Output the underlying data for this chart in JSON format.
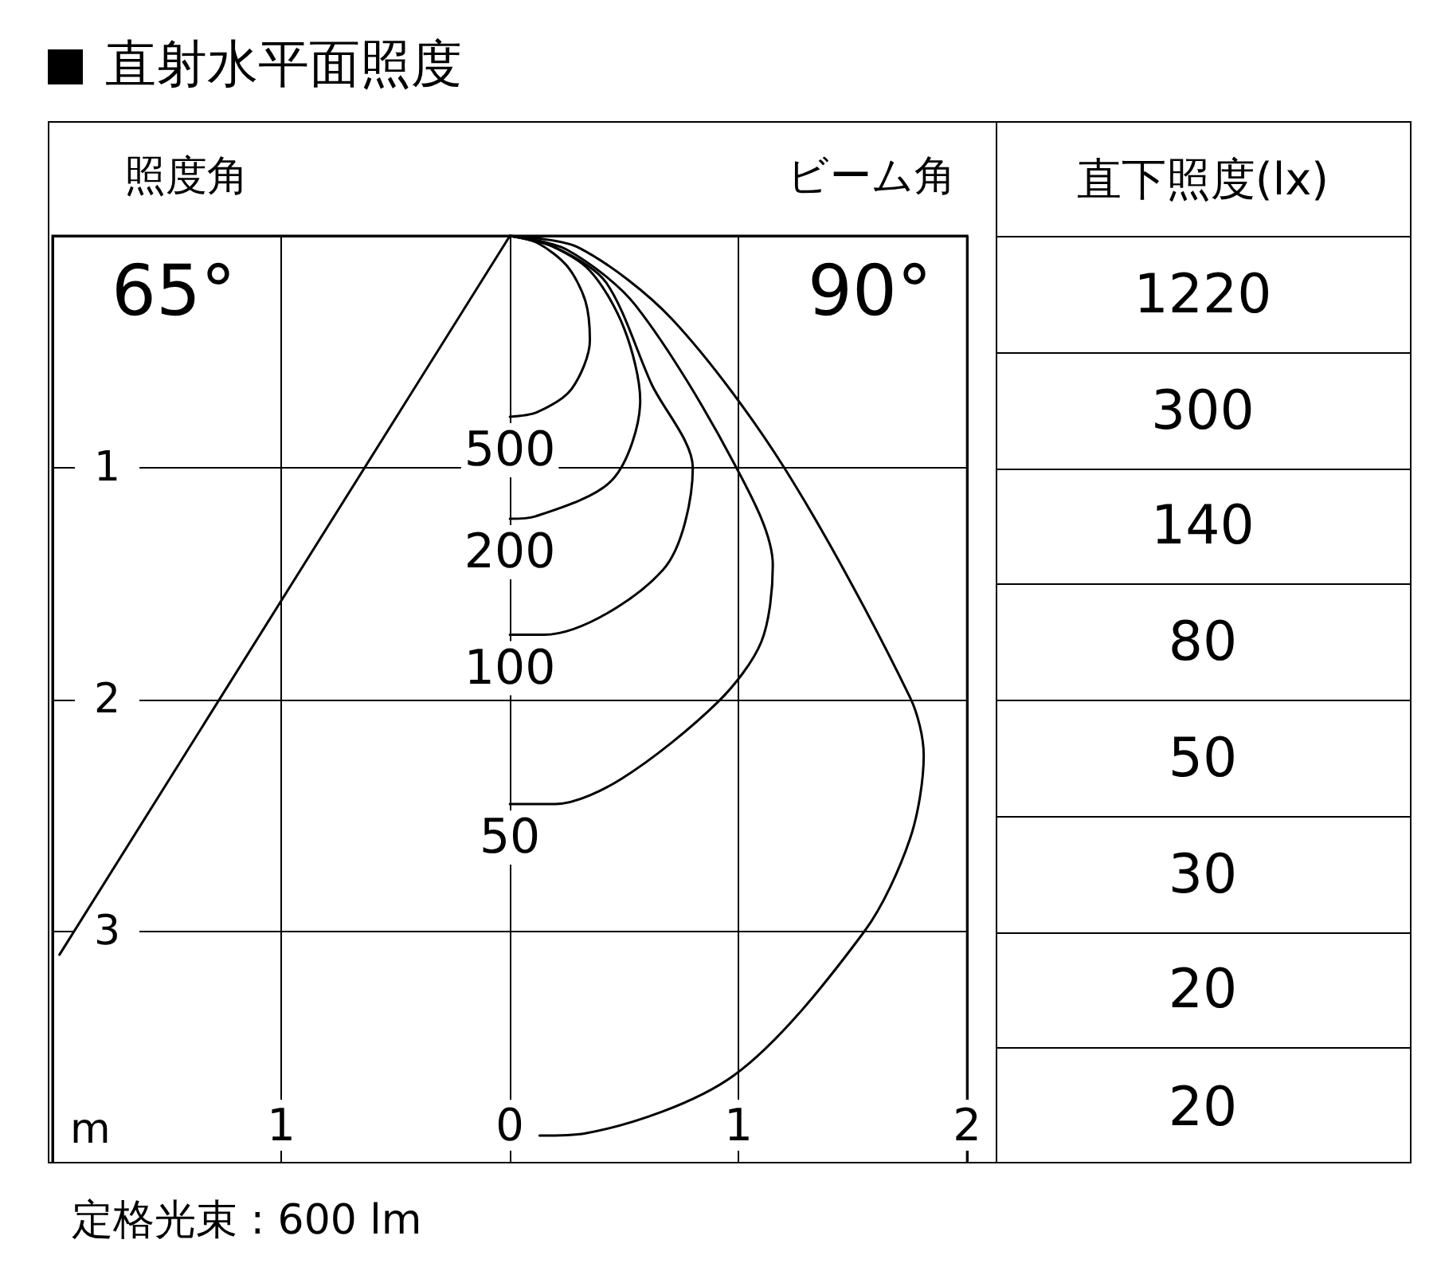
{
  "chart_data": [
    {
      "type": "line",
      "title": "直射水平面照度",
      "xlabel": "m",
      "annotations": [
        "照度角",
        "65°",
        "ビーム角",
        "90°",
        "定格光束 : 600 lm"
      ],
      "xlim": [
        -2,
        2
      ],
      "xticks": [
        {
          "value": -1,
          "label": "1"
        },
        0,
        1,
        2
      ],
      "ylim": [
        4,
        0
      ],
      "yticks": [
        1,
        2,
        3
      ],
      "grid": true,
      "legend": false,
      "series": [
        {
          "name": "500",
          "color": "#000000",
          "x": [
            0,
            0.12,
            0.25,
            0.33,
            0.35,
            0.27,
            0.12,
            0
          ],
          "values": [
            0,
            0.03,
            0.13,
            0.28,
            0.45,
            0.66,
            0.76,
            0.78
          ]
        },
        {
          "name": "200",
          "color": "#000000",
          "x": [
            0,
            0.15,
            0.35,
            0.5,
            0.57,
            0.45,
            0.11,
            0
          ],
          "values": [
            0,
            0.03,
            0.15,
            0.4,
            0.71,
            1.05,
            1.21,
            1.22
          ]
        },
        {
          "name": "100",
          "color": "#000000",
          "x": [
            0,
            0.2,
            0.42,
            0.62,
            0.8,
            0.67,
            0.15,
            0
          ],
          "values": [
            0,
            0.05,
            0.2,
            0.64,
            1.0,
            1.44,
            1.72,
            1.72
          ]
        },
        {
          "name": "50",
          "color": "#000000",
          "x": [
            0,
            0.25,
            0.55,
            0.98,
            1.15,
            1.1,
            0.91,
            0.49,
            0.2,
            0
          ],
          "values": [
            0,
            0.06,
            0.3,
            0.98,
            1.42,
            1.75,
            2.01,
            2.34,
            2.45,
            2.45
          ]
        },
        {
          "color": "#000000",
          "x": [
            0,
            0.3,
            0.71,
            1.2,
            1.75,
            1.81,
            1.75,
            1.55,
            0.98,
            0.33,
            0.13
          ],
          "values": [
            0,
            0.05,
            0.36,
            1.0,
            1.99,
            2.24,
            2.6,
            3.0,
            3.62,
            3.87,
            3.88
          ]
        },
        {
          "color": "#000000",
          "x": [
            0,
            -1.97
          ],
          "values": [
            0,
            3.1
          ]
        }
      ]
    },
    {
      "type": "other",
      "title": "直下照度(lx)",
      "annotations": [
        "1220",
        "300",
        "140",
        "80",
        "50",
        "30",
        "20",
        "20"
      ]
    }
  ]
}
